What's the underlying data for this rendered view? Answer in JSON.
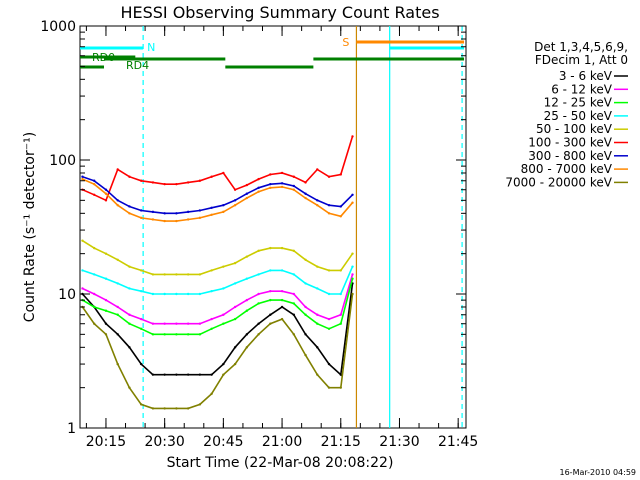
{
  "chart_data": {
    "type": "line",
    "title": "HESSI Observing Summary Count Rates",
    "xlabel": "Start Time (22-Mar-08 20:08:22)",
    "ylabel": "Count Rate (s⁻¹ detector⁻¹)",
    "y_scale": "log",
    "ylim": [
      1,
      1000
    ],
    "xlim": [
      "20:08:22",
      "21:47:00"
    ],
    "x_ticks": [
      "20:15",
      "20:30",
      "20:45",
      "21:00",
      "21:15",
      "21:30",
      "21:45"
    ],
    "y_ticks": [
      "1",
      "10",
      "100",
      "1000"
    ],
    "footer": "16-Mar-2010 04:59",
    "legend": {
      "header": [
        "Det 1,3,4,5,6,9,",
        "FDecim 1, Att 0"
      ],
      "placement": "right"
    },
    "series": [
      {
        "name": "3 - 6 keV",
        "color": "#000000",
        "x": [
          "20:09",
          "20:12",
          "20:15",
          "20:18",
          "20:21",
          "20:24",
          "20:27",
          "20:30",
          "20:33",
          "20:36",
          "20:39",
          "20:42",
          "20:45",
          "20:48",
          "20:51",
          "20:54",
          "20:57",
          "21:00",
          "21:03",
          "21:06",
          "21:09",
          "21:12",
          "21:15",
          "21:18"
        ],
        "values": [
          10,
          8,
          6,
          5,
          4,
          3,
          2.5,
          2.5,
          2.5,
          2.5,
          2.5,
          2.5,
          3,
          4,
          5,
          6,
          7,
          8,
          7,
          5,
          4,
          3,
          2.5,
          12
        ]
      },
      {
        "name": "6 - 12 keV",
        "color": "#ff00ff",
        "x": [
          "20:09",
          "20:12",
          "20:15",
          "20:18",
          "20:21",
          "20:24",
          "20:27",
          "20:30",
          "20:33",
          "20:36",
          "20:39",
          "20:42",
          "20:45",
          "20:48",
          "20:51",
          "20:54",
          "20:57",
          "21:00",
          "21:03",
          "21:06",
          "21:09",
          "21:12",
          "21:15",
          "21:18"
        ],
        "values": [
          11,
          10,
          9,
          8,
          7,
          6.5,
          6,
          6,
          6,
          6,
          6,
          6.5,
          7,
          8,
          9,
          10,
          10.5,
          10.5,
          10,
          8,
          7,
          6.5,
          7,
          14
        ]
      },
      {
        "name": "12 - 25 keV",
        "color": "#00ff00",
        "x": [
          "20:09",
          "20:12",
          "20:15",
          "20:18",
          "20:21",
          "20:24",
          "20:27",
          "20:30",
          "20:33",
          "20:36",
          "20:39",
          "20:42",
          "20:45",
          "20:48",
          "20:51",
          "20:54",
          "20:57",
          "21:00",
          "21:03",
          "21:06",
          "21:09",
          "21:12",
          "21:15",
          "21:18"
        ],
        "values": [
          9,
          8,
          7.5,
          7,
          6,
          5.5,
          5,
          5,
          5,
          5,
          5,
          5.5,
          6,
          6.5,
          7.5,
          8.5,
          9,
          9,
          8.5,
          7,
          6,
          5.5,
          6,
          13
        ]
      },
      {
        "name": "25 - 50 keV",
        "color": "#00ffff",
        "x": [
          "20:09",
          "20:12",
          "20:15",
          "20:18",
          "20:21",
          "20:24",
          "20:27",
          "20:30",
          "20:33",
          "20:36",
          "20:39",
          "20:42",
          "20:45",
          "20:48",
          "20:51",
          "20:54",
          "20:57",
          "21:00",
          "21:03",
          "21:06",
          "21:09",
          "21:12",
          "21:15",
          "21:18"
        ],
        "values": [
          15,
          14,
          13,
          12,
          11,
          10.5,
          10,
          10,
          10,
          10,
          10,
          10.5,
          11,
          12,
          13,
          14,
          15,
          15,
          14,
          12,
          11,
          10,
          10,
          16
        ]
      },
      {
        "name": "50 - 100 keV",
        "color": "#cccc00",
        "x": [
          "20:09",
          "20:12",
          "20:15",
          "20:18",
          "20:21",
          "20:24",
          "20:27",
          "20:30",
          "20:33",
          "20:36",
          "20:39",
          "20:42",
          "20:45",
          "20:48",
          "20:51",
          "20:54",
          "20:57",
          "21:00",
          "21:03",
          "21:06",
          "21:09",
          "21:12",
          "21:15",
          "21:18"
        ],
        "values": [
          25,
          22,
          20,
          18,
          16,
          15,
          14,
          14,
          14,
          14,
          14,
          15,
          16,
          17,
          19,
          21,
          22,
          22,
          21,
          18,
          16,
          15,
          15,
          20
        ]
      },
      {
        "name": "100 - 300 keV",
        "color": "#ff0000",
        "x": [
          "20:09",
          "20:12",
          "20:15",
          "20:18",
          "20:21",
          "20:24",
          "20:27",
          "20:30",
          "20:33",
          "20:36",
          "20:39",
          "20:42",
          "20:45",
          "20:48",
          "20:51",
          "20:54",
          "20:57",
          "21:00",
          "21:03",
          "21:06",
          "21:09",
          "21:12",
          "21:15",
          "21:18"
        ],
        "values": [
          60,
          55,
          50,
          85,
          75,
          70,
          68,
          66,
          66,
          68,
          70,
          75,
          80,
          60,
          65,
          72,
          78,
          80,
          75,
          68,
          85,
          75,
          78,
          150
        ]
      },
      {
        "name": "300 - 800 keV",
        "color": "#0000cc",
        "x": [
          "20:09",
          "20:12",
          "20:15",
          "20:18",
          "20:21",
          "20:24",
          "20:27",
          "20:30",
          "20:33",
          "20:36",
          "20:39",
          "20:42",
          "20:45",
          "20:48",
          "20:51",
          "20:54",
          "20:57",
          "21:00",
          "21:03",
          "21:06",
          "21:09",
          "21:12",
          "21:15",
          "21:18"
        ],
        "values": [
          75,
          70,
          60,
          50,
          45,
          42,
          41,
          40,
          40,
          41,
          42,
          44,
          46,
          50,
          56,
          62,
          66,
          67,
          64,
          56,
          50,
          46,
          45,
          55
        ]
      },
      {
        "name": "800 - 7000 keV",
        "color": "#ff8800",
        "x": [
          "20:09",
          "20:12",
          "20:15",
          "20:18",
          "20:21",
          "20:24",
          "20:27",
          "20:30",
          "20:33",
          "20:36",
          "20:39",
          "20:42",
          "20:45",
          "20:48",
          "20:51",
          "20:54",
          "20:57",
          "21:00",
          "21:03",
          "21:06",
          "21:09",
          "21:12",
          "21:15",
          "21:18"
        ],
        "values": [
          72,
          66,
          56,
          46,
          40,
          37,
          36,
          35,
          35,
          36,
          37,
          39,
          41,
          46,
          52,
          58,
          62,
          63,
          60,
          52,
          46,
          40,
          38,
          48
        ]
      },
      {
        "name": "7000 - 20000 keV",
        "color": "#808000",
        "x": [
          "20:09",
          "20:12",
          "20:15",
          "20:18",
          "20:21",
          "20:24",
          "20:27",
          "20:30",
          "20:33",
          "20:36",
          "20:39",
          "20:42",
          "20:45",
          "20:48",
          "20:51",
          "20:54",
          "20:57",
          "21:00",
          "21:03",
          "21:06",
          "21:09",
          "21:12",
          "21:15",
          "21:18"
        ],
        "values": [
          8,
          6,
          5,
          3,
          2,
          1.5,
          1.4,
          1.4,
          1.4,
          1.4,
          1.5,
          1.8,
          2.5,
          3,
          4,
          5,
          6,
          6.5,
          5,
          3.5,
          2.5,
          2,
          2,
          10
        ]
      }
    ],
    "annotations": [
      {
        "label": "RD0",
        "color": "#008000",
        "segments": [
          [
            "20:08:22",
            "20:22:30"
          ]
        ]
      },
      {
        "label": "RD4",
        "color": "#008000",
        "segments": [
          [
            "20:08:22",
            "20:14:30"
          ],
          [
            "20:14:30",
            "20:45:30"
          ],
          [
            "20:45:30",
            "21:08:00"
          ],
          [
            "21:08:00",
            "21:46:30"
          ]
        ]
      },
      {
        "label": "N",
        "color": "#00ffff",
        "segments": [
          [
            "20:08:22",
            "20:24:30"
          ],
          [
            "21:27:30",
            "21:46:30"
          ]
        ]
      },
      {
        "label": "S",
        "color": "#ff8800",
        "segments": [
          [
            "21:19:00",
            "21:46:30"
          ]
        ]
      }
    ],
    "vertical_lines": [
      {
        "x": "20:24:30",
        "color": "#00ffff",
        "style": "dashed"
      },
      {
        "x": "21:19:00",
        "color": "#cc8800",
        "style": "solid"
      },
      {
        "x": "21:27:30",
        "color": "#00ffff",
        "style": "solid"
      },
      {
        "x": "21:46:00",
        "color": "#00ffff",
        "style": "dashed"
      }
    ]
  }
}
